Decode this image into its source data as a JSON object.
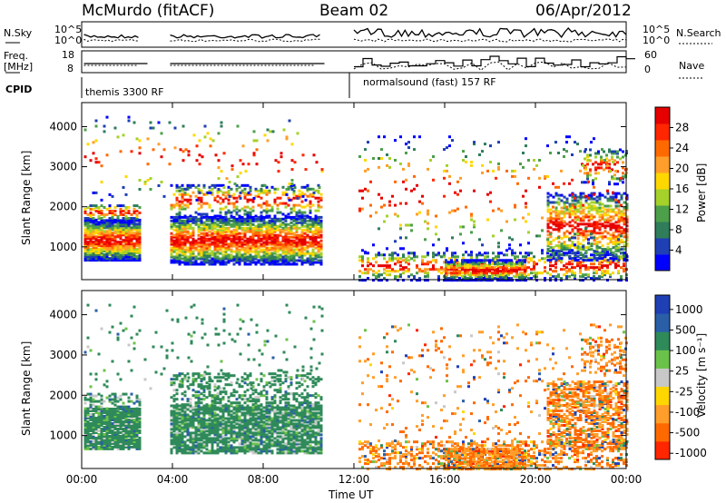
{
  "header": {
    "station": "McMurdo (fitACF)",
    "beam": "Beam 02",
    "date": "06/Apr/2012"
  },
  "strip_labels": {
    "nsky": "N.Sky",
    "nsky_ticks": [
      "10^5",
      "10^0"
    ],
    "nsearch": "N.Search",
    "nsearch_ticks": [
      "10^5",
      "10^0"
    ],
    "freq": "Freq.",
    "freq_unit": "[MHz]",
    "freq_ticks": [
      "18",
      "8"
    ],
    "nave": "Nave",
    "nave_ticks": [
      "60",
      "0"
    ],
    "cpid": "CPID",
    "cpid_mode_1": "themis 3300 RF",
    "cpid_mode_2": "normalsound (fast) 157 RF"
  },
  "chart_data": [
    {
      "type": "heatmap",
      "panel": "power",
      "ylabel": "Slant Range [km]",
      "xlabel": "Time UT",
      "x_ticks": [
        "00:00",
        "04:00",
        "08:00",
        "12:00",
        "16:00",
        "20:00",
        "00:00"
      ],
      "y_ticks": [
        1000,
        2000,
        3000,
        4000
      ],
      "xlim": [
        0,
        24
      ],
      "ylim": [
        180,
        4600
      ],
      "colorbar": {
        "label": "Power [dB]",
        "ticks": [
          "4",
          "8",
          "12",
          "16",
          "20",
          "24",
          "28"
        ],
        "colors": [
          "#0000ff",
          "#1f3fb5",
          "#2f7d5a",
          "#4da04a",
          "#a5d12a",
          "#ffd700",
          "#ff9e2a",
          "#ff6a00",
          "#ff2600",
          "#e60000"
        ]
      }
    },
    {
      "type": "heatmap",
      "panel": "velocity",
      "ylabel": "Slant Range [km]",
      "xlabel": "Time UT",
      "x_ticks": [
        "00:00",
        "04:00",
        "08:00",
        "12:00",
        "16:00",
        "20:00",
        "00:00"
      ],
      "y_ticks": [
        1000,
        2000,
        3000,
        4000
      ],
      "xlim": [
        0,
        24
      ],
      "ylim": [
        180,
        4600
      ],
      "colorbar": {
        "label": "Velocity [m s⁻¹]",
        "ticks": [
          "1000",
          "500",
          "100",
          "25",
          "-25",
          "-100",
          "-500",
          "-1000"
        ],
        "colors": [
          "#1f3fb5",
          "#2a5fa8",
          "#2f8a5a",
          "#6bc24a",
          "#c8c8c8",
          "#ffd700",
          "#ff9e2a",
          "#ff6a00",
          "#ff2600"
        ]
      }
    }
  ]
}
